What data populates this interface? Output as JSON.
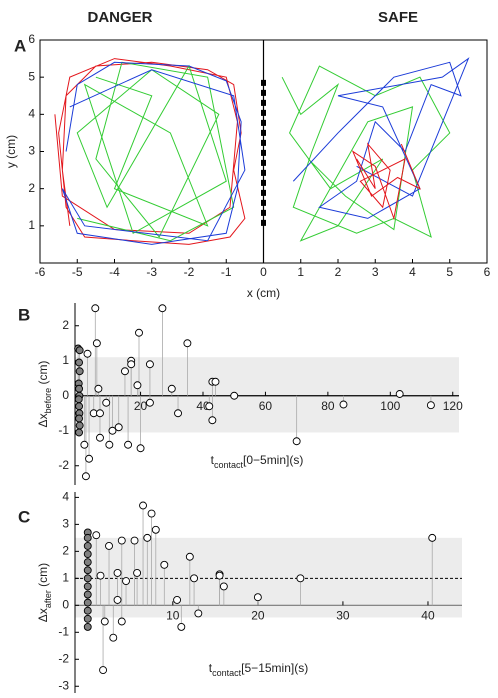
{
  "chart_data": [
    {
      "type": "line",
      "panel_label": "A",
      "annotations": [
        "DANGER",
        "SAFE"
      ],
      "xlabel": "x (cm)",
      "ylabel": "y (cm)",
      "xlim": [
        -6,
        6
      ],
      "ylim": [
        0,
        6
      ],
      "xticks": [
        -6,
        -5,
        -4,
        -3,
        -2,
        -1,
        0,
        1,
        2,
        3,
        4,
        5,
        6
      ],
      "yticks": [
        1,
        2,
        3,
        4,
        5,
        6
      ],
      "divider_x": 0,
      "door_ylim": [
        1,
        5
      ],
      "series": [
        {
          "color": "#e3161c",
          "x": [
            -5.2,
            -5.4,
            -5.3,
            -4.5,
            -3,
            -1.5,
            -0.8,
            -0.6,
            -0.8,
            -0.5,
            -0.9,
            -2,
            -3.5,
            -4.8,
            -5.3,
            -5.5,
            -5.2,
            -4,
            -2.5,
            -1,
            -0.7,
            -0.9,
            -2,
            -4,
            -5.4,
            -5.6
          ],
          "y": [
            1,
            2.5,
            4.5,
            5.3,
            5.4,
            5.2,
            4.8,
            3.5,
            2.5,
            1.2,
            0.7,
            0.5,
            0.6,
            0.7,
            1.5,
            3.5,
            5.0,
            5.5,
            5.3,
            5.0,
            3.8,
            1.5,
            0.8,
            0.9,
            1.8,
            4
          ]
        },
        {
          "color": "#33cc33",
          "x": [
            -4.5,
            -3,
            -4,
            -1.5,
            -2.5,
            -4.8,
            -3.5,
            -1,
            -2,
            -4.2,
            -5,
            -3,
            -1.2,
            -2.8,
            -4.5,
            -3.8,
            -1.5,
            -0.8,
            -2.5,
            -5
          ],
          "y": [
            5,
            4.5,
            2,
            1,
            3.5,
            4.8,
            0.8,
            2.2,
            5.3,
            1.5,
            3.5,
            5.2,
            4,
            0.7,
            2.8,
            5.4,
            5,
            1.5,
            0.6,
            1.2
          ]
        },
        {
          "color": "#1c3cd8",
          "x": [
            -5.3,
            -5,
            -4,
            -2,
            -1,
            -0.6,
            -0.7,
            -1,
            -3,
            -5,
            -5.4,
            -4.8,
            -1.5,
            -0.5,
            -0.8,
            -3,
            -5.2
          ],
          "y": [
            3,
            4.8,
            5.4,
            5.3,
            4.9,
            3.8,
            2,
            0.8,
            0.5,
            0.8,
            2,
            1,
            0.6,
            2.5,
            4.5,
            5.2,
            4.2
          ]
        },
        {
          "color": "#33cc33",
          "x": [
            0.5,
            1,
            2,
            1.3,
            0.8,
            2.5,
            3.5,
            4.5,
            4,
            5,
            4.2,
            3,
            1.5,
            0.7,
            1.8,
            3.2,
            2,
            1,
            2.8,
            4,
            3.5,
            2.2,
            1.2
          ],
          "y": [
            5,
            4,
            4.8,
            3,
            1.5,
            0.8,
            1.2,
            0.7,
            2.5,
            3.5,
            5,
            4.5,
            5.3,
            3.5,
            2,
            2.8,
            1,
            0.6,
            3.8,
            4.2,
            0.9,
            1.8,
            2.8
          ]
        },
        {
          "color": "#1c3cd8",
          "x": [
            0.8,
            2,
            3.5,
            5,
            5.3,
            4.5,
            3.8,
            3,
            2.5,
            1.5,
            2.8,
            4.2,
            3.2,
            2,
            4.8,
            5.5,
            4,
            2.5
          ],
          "y": [
            2.2,
            3.5,
            5,
            5.4,
            4.5,
            4.8,
            3,
            3.8,
            2.2,
            1.5,
            1.2,
            2,
            4.2,
            4.5,
            5,
            5.5,
            1.8,
            2.6
          ]
        },
        {
          "color": "#e3161c",
          "x": [
            2.5,
            3,
            2.8,
            3.4,
            3.2,
            2.6,
            3.8,
            3.5,
            3,
            2.4,
            2.9,
            3.6,
            4.2,
            3.7
          ],
          "y": [
            2.8,
            2,
            3.2,
            2.5,
            1.5,
            2.2,
            2.8,
            1.2,
            2.6,
            3,
            1.8,
            2.3,
            2,
            3.2
          ]
        }
      ]
    },
    {
      "type": "scatter",
      "panel_label": "B",
      "xlabel": [
        {
          "text": "t"
        },
        {
          "text": "contact",
          "sub": true
        },
        {
          "text": "[0−5min](s)"
        }
      ],
      "ylabel": [
        {
          "text": "Δx"
        },
        {
          "text": "before",
          "sub": true
        },
        {
          "text": " (cm)"
        }
      ],
      "xlim": [
        -1,
        122
      ],
      "ylim": [
        -2.55,
        2.65
      ],
      "xticks": [
        20,
        40,
        60,
        80,
        100,
        120
      ],
      "yticks": [
        -2,
        -1,
        0,
        1,
        2
      ],
      "band": [
        -1.05,
        1.1
      ],
      "series": [
        {
          "color": "#808080",
          "x": [
            0,
            0.5,
            0.3,
            0.5,
            0.2,
            0.3,
            0.4,
            0.2,
            0.3,
            0.4,
            0.3,
            0.5,
            0.3
          ],
          "y": [
            1.35,
            1.3,
            0.95,
            0.7,
            0.35,
            0.2,
            0,
            -0.1,
            -0.3,
            -0.5,
            -0.65,
            -0.85,
            -1.05
          ]
        },
        {
          "color": "#ffffff",
          "x": [
            2,
            2.5,
            3,
            3.5,
            5,
            5.5,
            6,
            6.5,
            7,
            7,
            9,
            10,
            11,
            13,
            15,
            17,
            17,
            16,
            19,
            19.5,
            20,
            23,
            23,
            27,
            30,
            32,
            35,
            42,
            43,
            44,
            43,
            50,
            70,
            85,
            103,
            113
          ],
          "y": [
            -1.4,
            -2.3,
            1.2,
            -1.8,
            -0.5,
            2.5,
            1.5,
            0.2,
            -0.5,
            -1.2,
            -0.2,
            -1.4,
            -1,
            -0.9,
            0.7,
            1,
            0.9,
            -1.4,
            0.3,
            1.8,
            -1.5,
            0.9,
            -0.2,
            2.5,
            0.2,
            -0.5,
            1.5,
            -0.3,
            0.4,
            0.4,
            -0.7,
            0,
            -1.3,
            -0.25,
            0.05,
            -0.27
          ]
        }
      ]
    },
    {
      "type": "scatter",
      "panel_label": "C",
      "xlabel": [
        {
          "text": "t"
        },
        {
          "text": "contact",
          "sub": true
        },
        {
          "text": "[5−15min](s)"
        }
      ],
      "ylabel": [
        {
          "text": "Δx"
        },
        {
          "text": "after",
          "sub": true
        },
        {
          "text": " (cm)"
        }
      ],
      "xlim": [
        -1.5,
        44
      ],
      "ylim": [
        -3.25,
        4.2
      ],
      "xticks": [
        10,
        20,
        30,
        40
      ],
      "yticks": [
        -3,
        -2,
        -1,
        0,
        1,
        2,
        3,
        4
      ],
      "band": [
        -0.45,
        2.5
      ],
      "reference_line": 1,
      "series": [
        {
          "color": "#808080",
          "x": [
            0,
            0,
            0,
            0,
            0,
            0,
            0,
            0,
            0,
            0,
            0,
            0,
            0
          ],
          "y": [
            2.7,
            2.5,
            2.2,
            1.9,
            1.6,
            1.3,
            1.0,
            0.7,
            0.4,
            0.1,
            -0.2,
            -0.5,
            -0.8
          ]
        },
        {
          "color": "#ffffff",
          "x": [
            1,
            1.5,
            1.8,
            2,
            2.5,
            3,
            3.5,
            3.5,
            4,
            4,
            4.5,
            5.5,
            5.8,
            6.5,
            7,
            7.5,
            8,
            9,
            10.5,
            11,
            12,
            12.5,
            13,
            15.5,
            15.5,
            16,
            20,
            25,
            40.5
          ],
          "y": [
            2.6,
            1.1,
            -2.4,
            -0.6,
            2.2,
            -1.2,
            0.2,
            1.2,
            2.4,
            -0.6,
            0.9,
            2.4,
            1.2,
            3.7,
            2.5,
            3.4,
            2.8,
            1.5,
            0.2,
            -0.8,
            1.8,
            1.0,
            -0.3,
            1.15,
            1.1,
            0.7,
            0.3,
            1.0,
            2.5
          ]
        }
      ]
    }
  ]
}
